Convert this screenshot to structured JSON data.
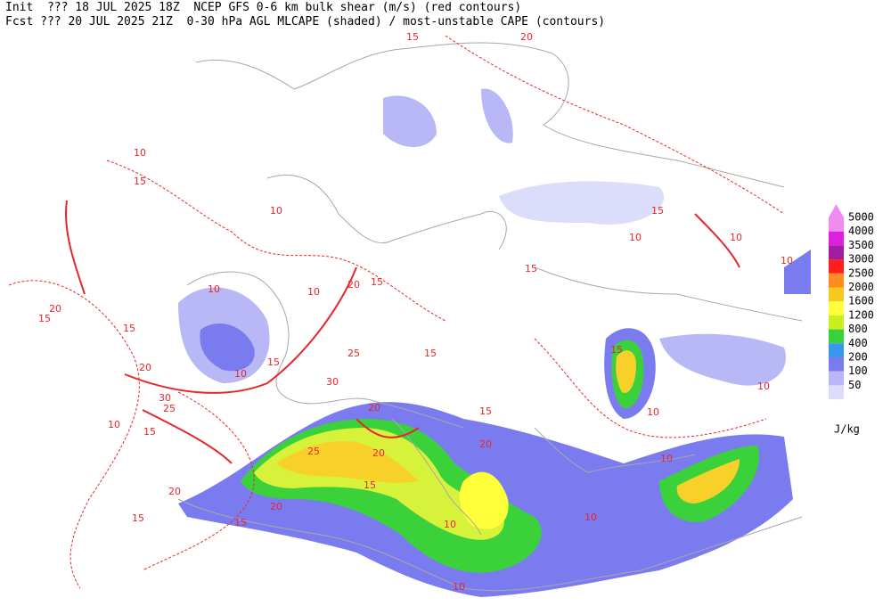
{
  "header": {
    "line1": "Init  ??? 18 JUL 2025 18Z  NCEP GFS 0-6 km bulk shear (m/s) (red contours)",
    "line2": "Fcst ??? 20 JUL 2025 21Z  0-30 hPa AGL MLCAPE (shaded) / most-unstable CAPE (contours)"
  },
  "legend": {
    "levels": [
      5000,
      4000,
      3500,
      3000,
      2500,
      2000,
      1600,
      1200,
      800,
      400,
      200,
      100,
      50
    ],
    "colors": [
      "#f08cf0",
      "#e01ee0",
      "#a01ea0",
      "#ff1e1e",
      "#ff8c1e",
      "#f7c81e",
      "#ffff3a",
      "#c8f01e",
      "#3bd13b",
      "#3b96f0",
      "#7b7bf0",
      "#b8b8f7",
      "#dcdcfb"
    ],
    "unit": "J/kg"
  },
  "contour_labels": [
    15,
    20,
    10,
    15,
    10,
    15,
    10,
    10,
    10,
    15,
    10,
    10,
    15,
    20,
    20,
    15,
    15,
    15,
    20,
    10,
    15,
    30,
    25,
    15,
    30,
    25,
    20,
    15,
    20,
    10,
    15,
    25,
    20,
    10,
    20,
    20,
    15,
    15,
    15,
    10,
    10,
    10,
    10,
    10
  ]
}
